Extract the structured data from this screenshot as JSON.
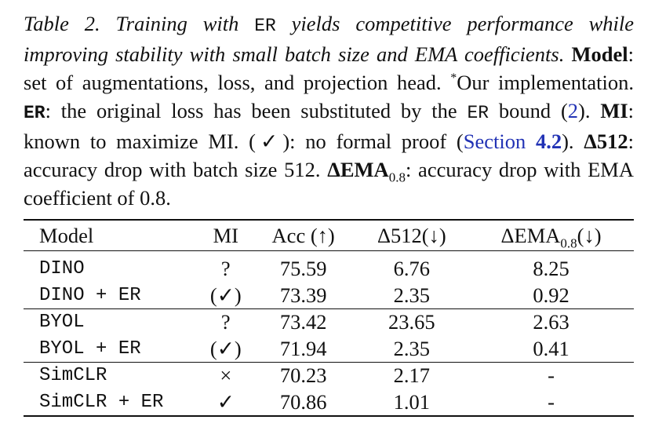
{
  "caption": {
    "segments": [
      "Table 2.",
      "Training with ",
      "ER",
      " yields competitive performance while improving stability with small batch size and EMA coefficients.",
      "Model",
      ": set of augmentations, loss, and projection head. ",
      "*",
      "Our implementation. ",
      "ER",
      ": the original loss has been substituted by the ",
      "ER",
      " bound (",
      "2",
      "). ",
      "MI",
      ": known to maximize MI. (✓): no formal proof (",
      "Section ",
      "4.2",
      "). ",
      "Δ512",
      ": accuracy drop with batch size 512. ",
      "ΔEMA",
      "0.8",
      ": accuracy drop with EMA coefficient of 0.8."
    ]
  },
  "table": {
    "header": [
      "Model",
      "MI",
      "Acc (↑)",
      "Δ512(↓)",
      "ΔEMA"
    ],
    "header_sub": "0.8",
    "header_suffix": "(↓)",
    "groups": [
      [
        [
          "DINO",
          "?",
          75.59,
          6.76,
          8.25
        ],
        [
          "DINO + ER",
          "(✓)",
          73.39,
          2.35,
          0.92
        ]
      ],
      [
        [
          "BYOL",
          "?",
          73.42,
          23.65,
          2.63
        ],
        [
          "BYOL + ER",
          "(✓)",
          71.94,
          2.35,
          0.41
        ]
      ],
      [
        [
          "SimCLR",
          "×",
          70.23,
          2.17,
          "-"
        ],
        [
          "SimCLR + ER",
          "✓",
          70.86,
          1.01,
          "-"
        ]
      ]
    ]
  }
}
